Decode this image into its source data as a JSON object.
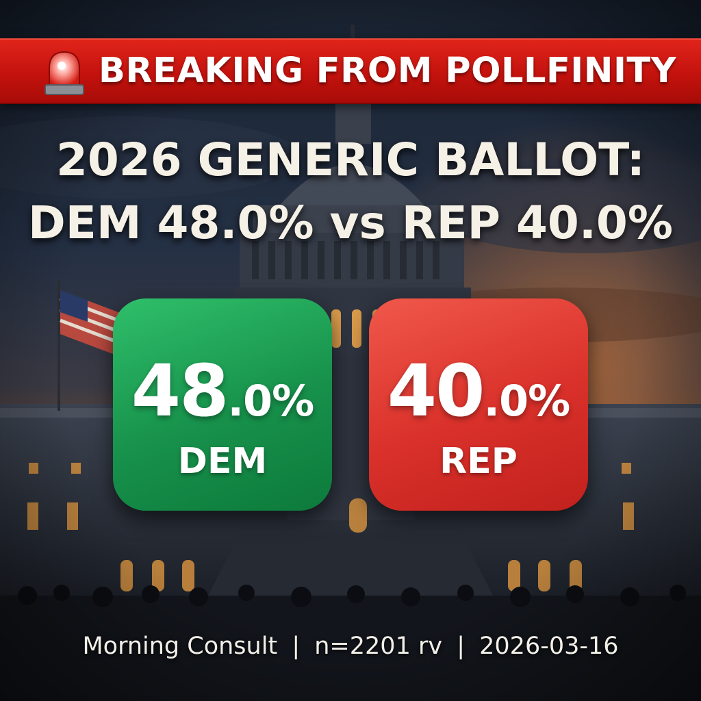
{
  "banner": {
    "icon": "siren-icon",
    "text": "BREAKING FROM POLLFINITY",
    "color": "#c3120d"
  },
  "headline": {
    "line1": "2026 GENERIC BALLOT:",
    "line2": "DEM 48.0% vs REP 40.0%"
  },
  "cards": {
    "dem": {
      "whole": "48",
      "decimal": ".0%",
      "label": "DEM",
      "value": 48.0,
      "color": "#17914b"
    },
    "rep": {
      "whole": "40",
      "decimal": ".0%",
      "label": "REP",
      "value": 40.0,
      "color": "#d9302a"
    }
  },
  "footer": {
    "source": "Morning Consult",
    "sample": "n=2201 rv",
    "date": "2026-03-16",
    "separator": "|"
  },
  "background": {
    "scene": "capitol-building-at-dusk",
    "flag": "us-flag-icon"
  }
}
